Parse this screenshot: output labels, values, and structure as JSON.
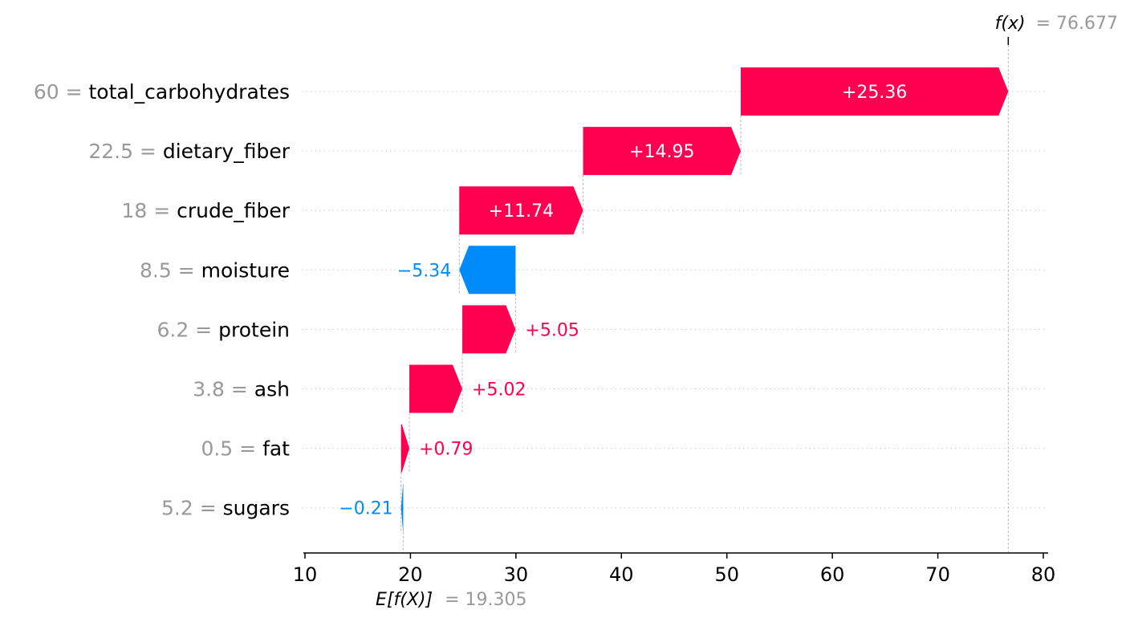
{
  "chart_data": {
    "type": "waterfall",
    "base_value": 19.305,
    "output_value": 76.677,
    "base_label": "E[f(X)]",
    "base_value_text": "= 19.305",
    "output_label": "f(x)",
    "output_value_text": "= 76.677",
    "xlim": [
      10,
      80
    ],
    "xticks": [
      10,
      20,
      30,
      40,
      50,
      60,
      70,
      80
    ],
    "features": [
      {
        "value": "60",
        "name": "total_carbohydrates",
        "shap": 25.36,
        "label": "+25.36"
      },
      {
        "value": "22.5",
        "name": "dietary_fiber",
        "shap": 14.95,
        "label": "+14.95"
      },
      {
        "value": "18",
        "name": "crude_fiber",
        "shap": 11.74,
        "label": "+11.74"
      },
      {
        "value": "8.5",
        "name": "moisture",
        "shap": -5.34,
        "label": "−5.34"
      },
      {
        "value": "6.2",
        "name": "protein",
        "shap": 5.05,
        "label": "+5.05"
      },
      {
        "value": "3.8",
        "name": "ash",
        "shap": 5.02,
        "label": "+5.02"
      },
      {
        "value": "0.5",
        "name": "fat",
        "shap": 0.79,
        "label": "+0.79"
      },
      {
        "value": "5.2",
        "name": "sugars",
        "shap": -0.21,
        "label": "−0.21"
      }
    ],
    "colors": {
      "positive": "#ff0051",
      "negative": "#008bfb",
      "grid": "#cccccc",
      "text_gray": "#999999"
    }
  }
}
